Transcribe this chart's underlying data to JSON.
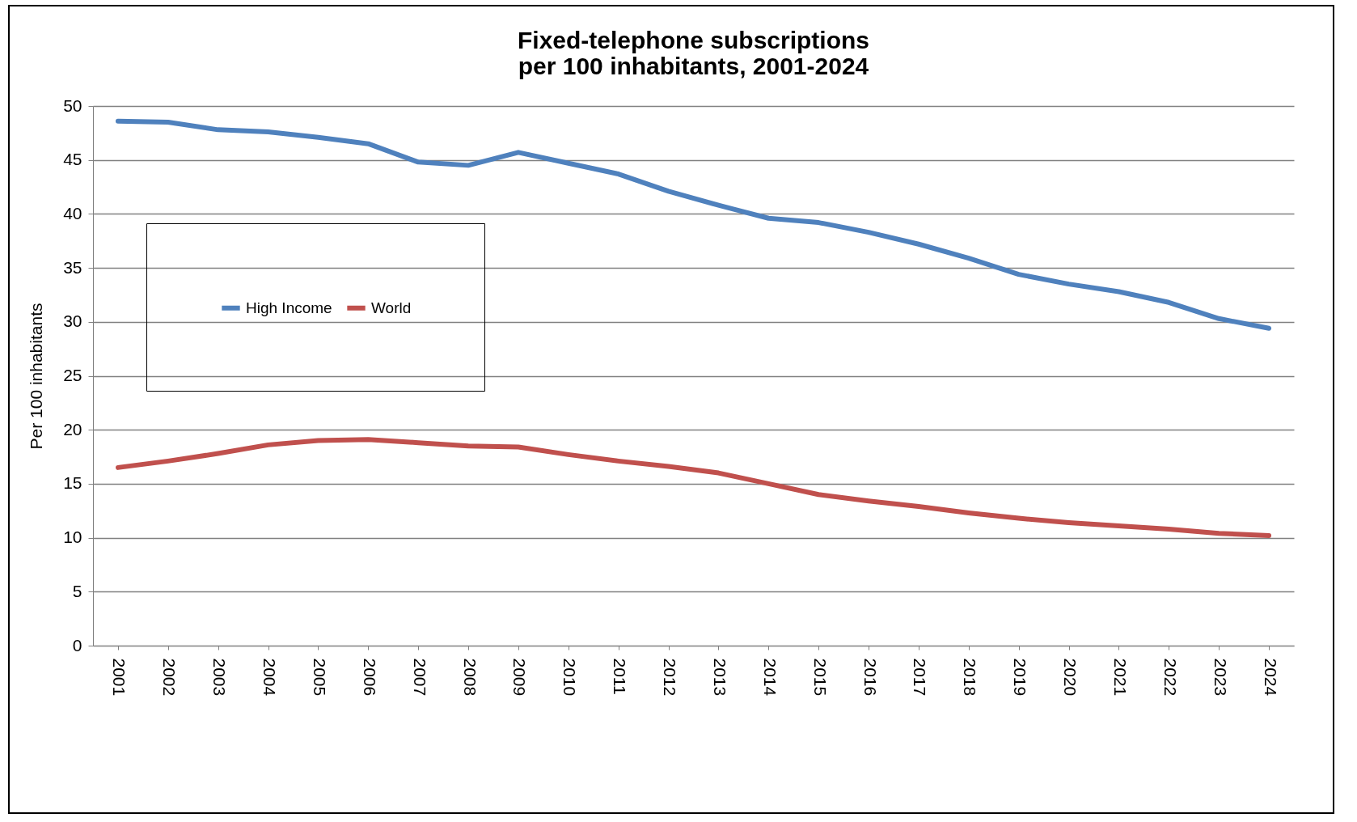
{
  "chart_data": {
    "type": "line",
    "title": "Fixed-telephone subscriptions\nper 100 inhabitants, 2001-2024",
    "ylabel": "Per 100 inhabitants",
    "categories": [
      "2001",
      "2002",
      "2003",
      "2004",
      "2005",
      "2006",
      "2007",
      "2008",
      "2009",
      "2010",
      "2011",
      "2012",
      "2013",
      "2014",
      "2015",
      "2016",
      "2017",
      "2018",
      "2019",
      "2020",
      "2021",
      "2022",
      "2023",
      "2024"
    ],
    "series": [
      {
        "name": "High Income",
        "color": "#4f81bd",
        "values": [
          48.6,
          48.5,
          47.8,
          47.6,
          47.1,
          46.5,
          44.8,
          44.5,
          45.7,
          44.7,
          43.7,
          42.1,
          40.8,
          39.6,
          39.2,
          38.3,
          37.2,
          35.9,
          34.4,
          33.5,
          32.8,
          31.8,
          30.3,
          29.4
        ]
      },
      {
        "name": "World",
        "color": "#c0504d",
        "values": [
          16.5,
          17.1,
          17.8,
          18.6,
          19.0,
          19.1,
          18.8,
          18.5,
          18.4,
          17.7,
          17.1,
          16.6,
          16.0,
          15.0,
          14.0,
          13.4,
          12.9,
          12.3,
          11.8,
          11.4,
          11.1,
          10.8,
          10.4,
          10.2
        ]
      }
    ],
    "ylim": [
      0,
      50
    ],
    "yticks": [
      0,
      5,
      10,
      15,
      20,
      25,
      30,
      35,
      40,
      45,
      50
    ],
    "grid": "y",
    "legend": "left",
    "marker": "none",
    "line_style": "solid"
  }
}
